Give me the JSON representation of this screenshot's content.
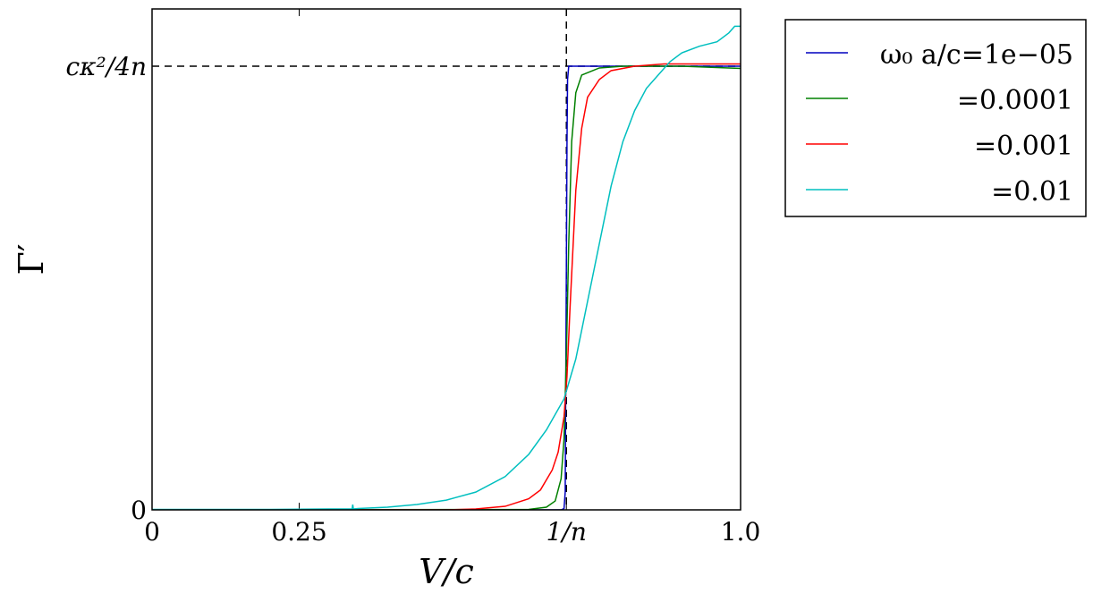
{
  "chart_data": {
    "type": "line",
    "xlabel": "V/c",
    "ylabel": "Γ′",
    "xlim": [
      0,
      1.0
    ],
    "ylim": [
      0,
      1.09
    ],
    "x_ticks": [
      {
        "value": 0,
        "label": "0"
      },
      {
        "value": 0.25,
        "label": "0.25"
      },
      {
        "value": 0.704,
        "label": "1/n"
      },
      {
        "value": 1.0,
        "label": "1.0"
      }
    ],
    "y_ticks": [
      {
        "value": 0,
        "label": "0"
      },
      {
        "value": 1.0,
        "label": "cκ²/4n"
      }
    ],
    "reference_lines": {
      "vertical_x": 0.704,
      "horizontal_y": 1.0,
      "style": "dashed",
      "color": "#000000"
    },
    "legend_placement": "outside-right",
    "series": [
      {
        "name": "ω₀ a/c = 1e−05",
        "color": "#0000bf",
        "x": [
          0,
          0.695,
          0.7,
          0.702,
          0.703,
          0.704,
          0.705,
          0.706,
          0.708,
          0.712,
          1.0
        ],
        "y": [
          0,
          0,
          0.003,
          0.04,
          0.3,
          0.55,
          0.82,
          0.97,
          1.0,
          1.0,
          1.0
        ]
      },
      {
        "name": "= 0.0001",
        "color": "#008000",
        "x": [
          0,
          0.64,
          0.67,
          0.685,
          0.695,
          0.7,
          0.704,
          0.708,
          0.713,
          0.72,
          0.73,
          0.76,
          0.8,
          0.9,
          1.0
        ],
        "y": [
          0,
          0.001,
          0.006,
          0.02,
          0.07,
          0.16,
          0.35,
          0.6,
          0.83,
          0.94,
          0.98,
          0.996,
          1.0,
          1.0,
          0.995
        ]
      },
      {
        "name": "= 0.001",
        "color": "#ff0000",
        "x": [
          0,
          0.5,
          0.55,
          0.6,
          0.64,
          0.66,
          0.68,
          0.69,
          0.7,
          0.705,
          0.71,
          0.72,
          0.73,
          0.74,
          0.76,
          0.78,
          0.82,
          0.87,
          0.93,
          1.0
        ],
        "y": [
          0,
          0.0,
          0.002,
          0.008,
          0.025,
          0.045,
          0.09,
          0.13,
          0.21,
          0.3,
          0.45,
          0.72,
          0.86,
          0.93,
          0.97,
          0.99,
          1.0,
          1.005,
          1.005,
          1.005
        ]
      },
      {
        "name": "= 0.01",
        "color": "#00bfbf",
        "x": [
          0,
          0.2,
          0.3,
          0.34,
          0.341,
          0.342,
          0.35,
          0.4,
          0.45,
          0.5,
          0.55,
          0.6,
          0.64,
          0.67,
          0.7,
          0.72,
          0.74,
          0.76,
          0.78,
          0.8,
          0.82,
          0.84,
          0.86,
          0.88,
          0.9,
          0.93,
          0.96,
          0.98,
          0.99,
          1.0
        ],
        "y": [
          0.001,
          0.001,
          0.002,
          0.002,
          0.012,
          0.002,
          0.003,
          0.006,
          0.012,
          0.022,
          0.04,
          0.075,
          0.125,
          0.18,
          0.25,
          0.34,
          0.47,
          0.6,
          0.73,
          0.83,
          0.9,
          0.95,
          0.98,
          1.01,
          1.03,
          1.045,
          1.055,
          1.075,
          1.09,
          1.09
        ]
      }
    ]
  },
  "legend": {
    "entries": [
      {
        "label": "ω₀ a/c=1e−05",
        "color": "#0000bf"
      },
      {
        "label": "=0.0001",
        "color": "#008000"
      },
      {
        "label": "=0.001",
        "color": "#ff0000"
      },
      {
        "label": "=0.01",
        "color": "#00bfbf"
      }
    ]
  }
}
